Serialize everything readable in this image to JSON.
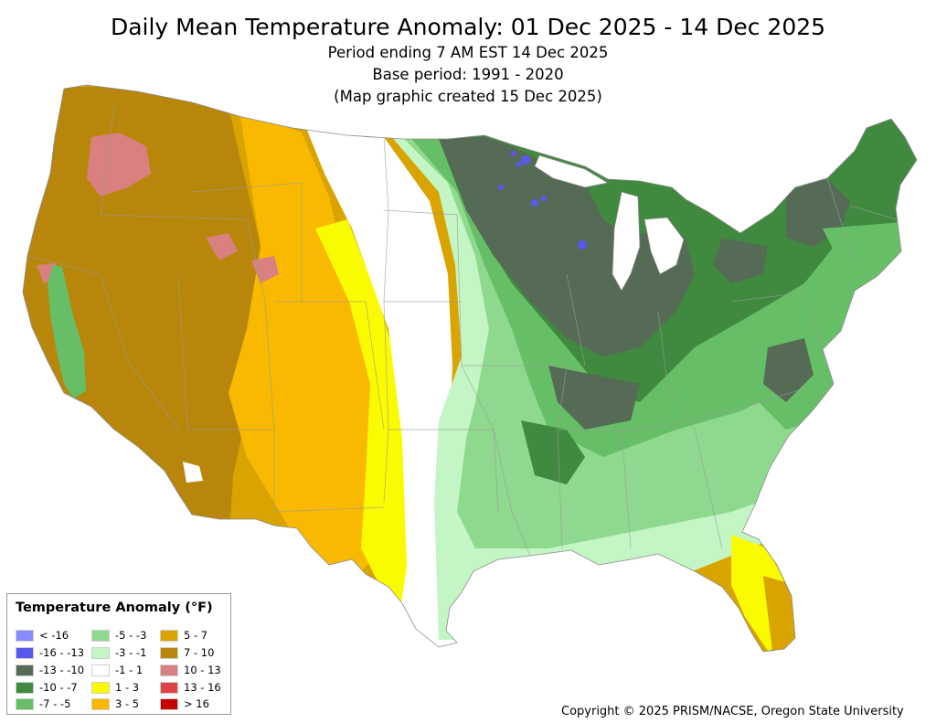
{
  "title": "Daily Mean Temperature Anomaly: 01 Dec 2025 - 14 Dec 2025",
  "subtitle_lines": [
    "Period ending 7 AM EST 14 Dec 2025",
    "Base period: 1991 - 2020",
    "(Map graphic created 15 Dec 2025)"
  ],
  "legend": {
    "title": "Temperature Anomaly (°F)",
    "items": [
      {
        "label": "< -16",
        "color": "#8a8aff"
      },
      {
        "label": "-16 - -13",
        "color": "#5858ee"
      },
      {
        "label": "-13 - -10",
        "color": "#556b55"
      },
      {
        "label": "-10 - -7",
        "color": "#3f8a3f"
      },
      {
        "label": "-7 - -5",
        "color": "#66bf66"
      },
      {
        "label": "-5 - -3",
        "color": "#8ed98e"
      },
      {
        "label": "-3 - -1",
        "color": "#c4f5c4"
      },
      {
        "label": "-1 - 1",
        "color": "#ffffff"
      },
      {
        "label": "1 - 3",
        "color": "#fafa00"
      },
      {
        "label": "3 - 5",
        "color": "#f8b900"
      },
      {
        "label": "5 - 7",
        "color": "#d9a300"
      },
      {
        "label": "7 - 10",
        "color": "#b8860b"
      },
      {
        "label": "10 - 13",
        "color": "#d98080"
      },
      {
        "label": "13 - 16",
        "color": "#dd4444"
      },
      {
        "label": "> 16",
        "color": "#c40000"
      }
    ]
  },
  "copyright": "Copyright © 2025 PRISM/NACSE, Oregon State University"
}
